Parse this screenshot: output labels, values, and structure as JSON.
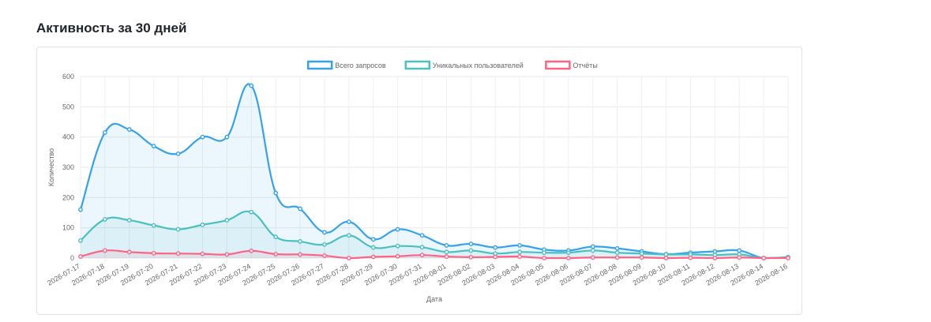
{
  "page": {
    "title": "Активность за 30 дней"
  },
  "chart_data": {
    "type": "line",
    "x": [
      "2026-07-17",
      "2026-07-18",
      "2026-07-19",
      "2026-07-20",
      "2026-07-21",
      "2026-07-22",
      "2026-07-23",
      "2026-07-24",
      "2026-07-25",
      "2026-07-26",
      "2026-07-27",
      "2026-07-28",
      "2026-07-29",
      "2026-07-30",
      "2026-07-31",
      "2026-08-01",
      "2026-08-02",
      "2026-08-03",
      "2026-08-04",
      "2026-08-05",
      "2026-08-06",
      "2026-08-07",
      "2026-08-08",
      "2026-08-09",
      "2026-08-10",
      "2026-08-11",
      "2026-08-12",
      "2026-08-13",
      "2026-08-14",
      "2026-08-16"
    ],
    "series": [
      {
        "name": "Всего запросов",
        "color": "#36a2eb",
        "fill": "rgba(54,162,235,0.10)",
        "values": [
          160,
          415,
          425,
          370,
          345,
          400,
          400,
          570,
          215,
          163,
          85,
          120,
          62,
          95,
          75,
          42,
          47,
          35,
          42,
          28,
          25,
          38,
          32,
          22,
          13,
          18,
          22,
          25,
          0,
          3
        ]
      },
      {
        "name": "Уникальных пользователей",
        "color": "#4bc0c0",
        "fill": "rgba(75,192,192,0.10)",
        "values": [
          58,
          128,
          125,
          108,
          95,
          110,
          125,
          152,
          70,
          55,
          45,
          75,
          35,
          40,
          36,
          20,
          25,
          15,
          20,
          18,
          18,
          25,
          18,
          15,
          12,
          12,
          10,
          12,
          0,
          2
        ]
      },
      {
        "name": "Отчёты",
        "color": "#ff6384",
        "fill": "rgba(255,99,132,0.10)",
        "values": [
          5,
          25,
          20,
          16,
          15,
          14,
          12,
          24,
          13,
          12,
          8,
          0,
          4,
          6,
          10,
          5,
          3,
          4,
          5,
          0,
          0,
          2,
          2,
          2,
          0,
          1,
          0,
          2,
          0,
          0
        ]
      }
    ],
    "xlabel": "Дата",
    "ylabel": "Количество",
    "ylim": [
      0,
      600
    ],
    "yticks": [
      0,
      100,
      200,
      300,
      400,
      500,
      600
    ],
    "grid": true,
    "legend": "top-center"
  }
}
